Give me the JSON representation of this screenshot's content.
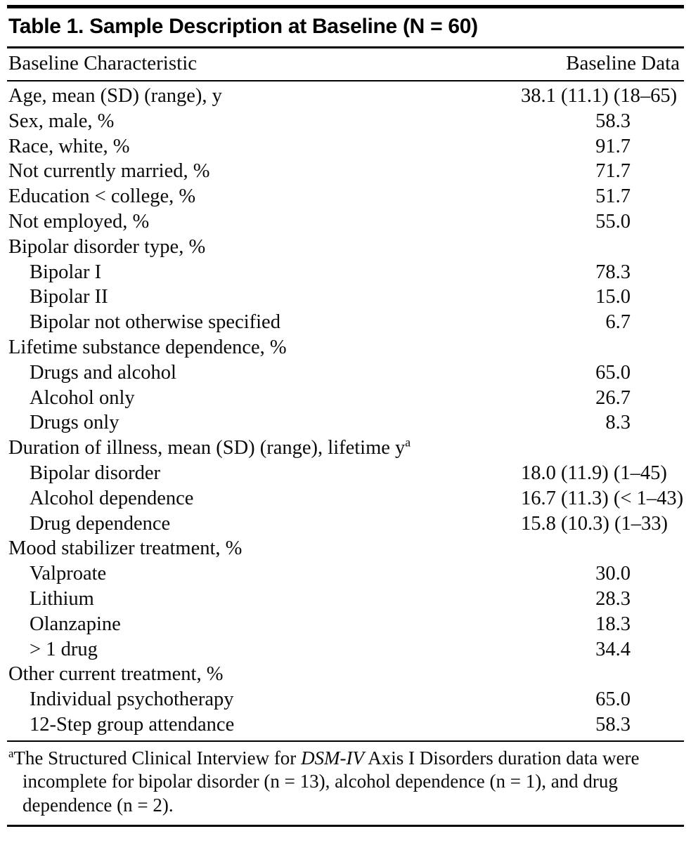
{
  "page": {
    "background": "#ffffff",
    "text_color": "#0b0b0b",
    "rule_color": "#000000"
  },
  "table": {
    "title": "Table 1. Sample Description at Baseline (N = 60)",
    "header": {
      "characteristic": "Baseline Characteristic",
      "data": "Baseline Data"
    },
    "rows": [
      {
        "label": "Age, mean (SD) (range), y",
        "indent": 0,
        "value": "38.1",
        "suffix": " (11.1) (18–65)"
      },
      {
        "label": "Sex, male, %",
        "indent": 0,
        "value": "58.3"
      },
      {
        "label": "Race, white, %",
        "indent": 0,
        "value": "91.7"
      },
      {
        "label": "Not currently married, %",
        "indent": 0,
        "value": "71.7"
      },
      {
        "label": "Education < college, %",
        "indent": 0,
        "value": "51.7"
      },
      {
        "label": "Not employed, %",
        "indent": 0,
        "value": "55.0"
      },
      {
        "label": "Bipolar disorder type, %",
        "indent": 0
      },
      {
        "label": "Bipolar I",
        "indent": 1,
        "value": "78.3"
      },
      {
        "label": "Bipolar II",
        "indent": 1,
        "value": "15.0"
      },
      {
        "label": "Bipolar not otherwise specified",
        "indent": 1,
        "value": "6.7"
      },
      {
        "label": "Lifetime substance dependence, %",
        "indent": 0
      },
      {
        "label": "Drugs and alcohol",
        "indent": 1,
        "value": "65.0"
      },
      {
        "label": "Alcohol only",
        "indent": 1,
        "value": "26.7"
      },
      {
        "label": "Drugs only",
        "indent": 1,
        "value": "8.3"
      },
      {
        "label": "Duration of illness, mean (SD) (range), lifetime y",
        "sup": "a",
        "indent": 0
      },
      {
        "label": "Bipolar disorder",
        "indent": 1,
        "value": "18.0",
        "suffix": " (11.9) (1–45)"
      },
      {
        "label": "Alcohol dependence",
        "indent": 1,
        "value": "16.7",
        "suffix": " (11.3) (< 1–43)"
      },
      {
        "label": "Drug dependence",
        "indent": 1,
        "value": "15.8",
        "suffix": " (10.3) (1–33)"
      },
      {
        "label": "Mood stabilizer treatment, %",
        "indent": 0
      },
      {
        "label": "Valproate",
        "indent": 1,
        "value": "30.0"
      },
      {
        "label": "Lithium",
        "indent": 1,
        "value": "28.3"
      },
      {
        "label": "Olanzapine",
        "indent": 1,
        "value": "18.3"
      },
      {
        "label": "> 1 drug",
        "indent": 1,
        "value": "34.4"
      },
      {
        "label": "Other current treatment, %",
        "indent": 0
      },
      {
        "label": "Individual psychotherapy",
        "indent": 1,
        "value": "65.0"
      },
      {
        "label": "12-Step group attendance",
        "indent": 1,
        "value": "58.3"
      }
    ],
    "footnote": {
      "marker": "a",
      "text_before_italic": "The Structured Clinical Interview for ",
      "italic": "DSM-IV",
      "text_after_italic": " Axis I Disorders duration data were incomplete for bipolar disorder (n = 13), alcohol dependence (n = 1), and drug dependence (n = 2)."
    }
  }
}
